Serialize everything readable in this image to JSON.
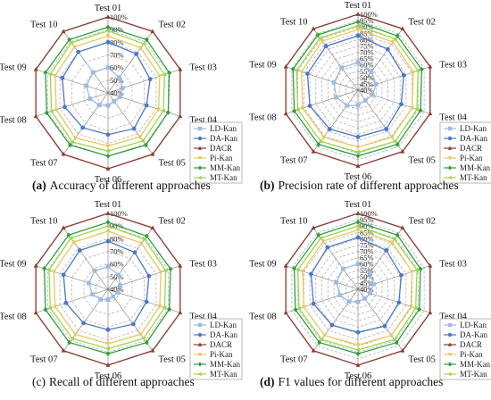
{
  "figure": {
    "panels": [
      {
        "tag": "(a)",
        "caption": "Accuracy of different approaches",
        "tag_bold": true
      },
      {
        "tag": "(b)",
        "caption": "Precision rate of different approaches",
        "tag_bold": true
      },
      {
        "tag": "(c)",
        "caption": "Recall of different approaches",
        "tag_bold": false
      },
      {
        "tag": "(d)",
        "caption": "F1 values for different approaches",
        "tag_bold": true
      }
    ]
  },
  "chart_data": [
    {
      "type": "radar",
      "title": "",
      "categories": [
        "Test 01",
        "Test 02",
        "Test 03",
        "Test 04",
        "Test 05",
        "Test 06",
        "Test 07",
        "Test 08",
        "Test 09",
        "Test 10"
      ],
      "radial_ticks": [
        "40%",
        "50%",
        "60%",
        "70%",
        "80%",
        "90%",
        "100%"
      ],
      "rlim": [
        40,
        100
      ],
      "grid": true,
      "legend_position": "bottom-right",
      "series": [
        {
          "name": "LD-Kan",
          "color": "#9dbbe3",
          "marker": "square",
          "values": [
            60,
            55,
            52,
            50,
            48,
            50,
            52,
            55,
            58,
            60
          ]
        },
        {
          "name": "DA-Kan",
          "color": "#4a78c8",
          "marker": "circle",
          "values": [
            80,
            78,
            75,
            72,
            75,
            73,
            74,
            76,
            78,
            80
          ]
        },
        {
          "name": "DACR",
          "color": "#8b3a2f",
          "marker": "triangle",
          "values": [
            100,
            100,
            100,
            100,
            100,
            100,
            100,
            100,
            100,
            100
          ]
        },
        {
          "name": "Pi-Kan",
          "color": "#e7c85a",
          "marker": "tri_down",
          "values": [
            85,
            84,
            83,
            82,
            83,
            82,
            84,
            83,
            84,
            85
          ]
        },
        {
          "name": "MM-Kan",
          "color": "#2e9e3f",
          "marker": "diamond",
          "values": [
            92,
            92,
            91,
            90,
            91,
            90,
            91,
            91,
            92,
            92
          ]
        },
        {
          "name": "MT-Kan",
          "color": "#9fd64a",
          "marker": "tri_left",
          "values": [
            89,
            88,
            87,
            86,
            87,
            86,
            88,
            87,
            88,
            89
          ]
        }
      ]
    },
    {
      "type": "radar",
      "title": "",
      "categories": [
        "Test 01",
        "Test 02",
        "Test 03",
        "Test 04",
        "Test 05",
        "Test 06",
        "Test 07",
        "Test 08",
        "Test 09",
        "Test 10"
      ],
      "radial_ticks": [
        "40%",
        "45%",
        "50%",
        "55%",
        "60%",
        "65%",
        "70%",
        "75%",
        "80%",
        "85%",
        "90%",
        "95%",
        "100%"
      ],
      "rlim": [
        40,
        100
      ],
      "grid": true,
      "legend_position": "bottom-right",
      "series": [
        {
          "name": "LD-Kan",
          "color": "#9dbbe3",
          "marker": "square",
          "values": [
            62,
            58,
            55,
            52,
            50,
            52,
            55,
            58,
            60,
            62
          ]
        },
        {
          "name": "DA-Kan",
          "color": "#4a78c8",
          "marker": "circle",
          "values": [
            83,
            80,
            78,
            76,
            78,
            77,
            78,
            80,
            82,
            83
          ]
        },
        {
          "name": "DACR",
          "color": "#8b3a2f",
          "marker": "triangle",
          "values": [
            100,
            100,
            100,
            100,
            100,
            100,
            100,
            100,
            100,
            100
          ]
        },
        {
          "name": "Pi-Kan",
          "color": "#e7c85a",
          "marker": "tri_down",
          "values": [
            88,
            87,
            86,
            85,
            86,
            85,
            86,
            86,
            87,
            88
          ]
        },
        {
          "name": "MM-Kan",
          "color": "#2e9e3f",
          "marker": "diamond",
          "values": [
            94,
            93,
            93,
            92,
            93,
            92,
            93,
            93,
            94,
            94
          ]
        },
        {
          "name": "MT-Kan",
          "color": "#9fd64a",
          "marker": "tri_left",
          "values": [
            91,
            90,
            90,
            89,
            90,
            89,
            90,
            90,
            91,
            91
          ]
        }
      ]
    },
    {
      "type": "radar",
      "title": "",
      "categories": [
        "Test 01",
        "Test 02",
        "Test 03",
        "Test 04",
        "Test 05",
        "Test 06",
        "Test 07",
        "Test 08",
        "Test 09",
        "Test 10"
      ],
      "radial_ticks": [
        "40%",
        "50%",
        "60%",
        "70%",
        "80%",
        "90%",
        "100%"
      ],
      "rlim": [
        40,
        100
      ],
      "grid": true,
      "legend_position": "bottom-right",
      "series": [
        {
          "name": "LD-Kan",
          "color": "#9dbbe3",
          "marker": "square",
          "values": [
            58,
            54,
            50,
            48,
            47,
            48,
            50,
            53,
            56,
            58
          ]
        },
        {
          "name": "DA-Kan",
          "color": "#4a78c8",
          "marker": "circle",
          "values": [
            78,
            76,
            74,
            72,
            74,
            72,
            73,
            75,
            77,
            78
          ]
        },
        {
          "name": "DACR",
          "color": "#8b3a2f",
          "marker": "triangle",
          "values": [
            100,
            100,
            100,
            100,
            100,
            100,
            100,
            100,
            100,
            100
          ]
        },
        {
          "name": "Pi-Kan",
          "color": "#e7c85a",
          "marker": "tri_down",
          "values": [
            86,
            85,
            84,
            83,
            84,
            83,
            84,
            84,
            85,
            86
          ]
        },
        {
          "name": "MM-Kan",
          "color": "#2e9e3f",
          "marker": "diamond",
          "values": [
            93,
            92,
            92,
            91,
            92,
            91,
            92,
            92,
            93,
            93
          ]
        },
        {
          "name": "MT-Kan",
          "color": "#9fd64a",
          "marker": "tri_left",
          "values": [
            90,
            89,
            88,
            87,
            88,
            87,
            88,
            88,
            89,
            90
          ]
        }
      ]
    },
    {
      "type": "radar",
      "title": "",
      "categories": [
        "Test 01",
        "Test 02",
        "Test 03",
        "Test 04",
        "Test 05",
        "Test 06",
        "Test 07",
        "Test 08",
        "Test 09",
        "Test 10"
      ],
      "radial_ticks": [
        "40%",
        "45%",
        "50%",
        "55%",
        "60%",
        "65%",
        "70%",
        "75%",
        "80%",
        "85%",
        "90%",
        "95%",
        "100%"
      ],
      "rlim": [
        40,
        100
      ],
      "grid": true,
      "legend_position": "bottom-right",
      "series": [
        {
          "name": "LD-Kan",
          "color": "#9dbbe3",
          "marker": "square",
          "values": [
            60,
            56,
            53,
            50,
            49,
            50,
            52,
            55,
            58,
            60
          ]
        },
        {
          "name": "DA-Kan",
          "color": "#4a78c8",
          "marker": "circle",
          "values": [
            81,
            78,
            76,
            74,
            76,
            74,
            75,
            77,
            79,
            81
          ]
        },
        {
          "name": "DACR",
          "color": "#8b3a2f",
          "marker": "triangle",
          "values": [
            100,
            100,
            100,
            100,
            100,
            100,
            100,
            100,
            100,
            100
          ]
        },
        {
          "name": "Pi-Kan",
          "color": "#e7c85a",
          "marker": "tri_down",
          "values": [
            87,
            86,
            85,
            84,
            85,
            84,
            85,
            85,
            86,
            87
          ]
        },
        {
          "name": "MM-Kan",
          "color": "#2e9e3f",
          "marker": "diamond",
          "values": [
            93,
            93,
            92,
            91,
            92,
            91,
            92,
            92,
            93,
            93
          ]
        },
        {
          "name": "MT-Kan",
          "color": "#9fd64a",
          "marker": "tri_left",
          "values": [
            90,
            89,
            89,
            88,
            89,
            88,
            89,
            89,
            90,
            90
          ]
        }
      ]
    }
  ]
}
